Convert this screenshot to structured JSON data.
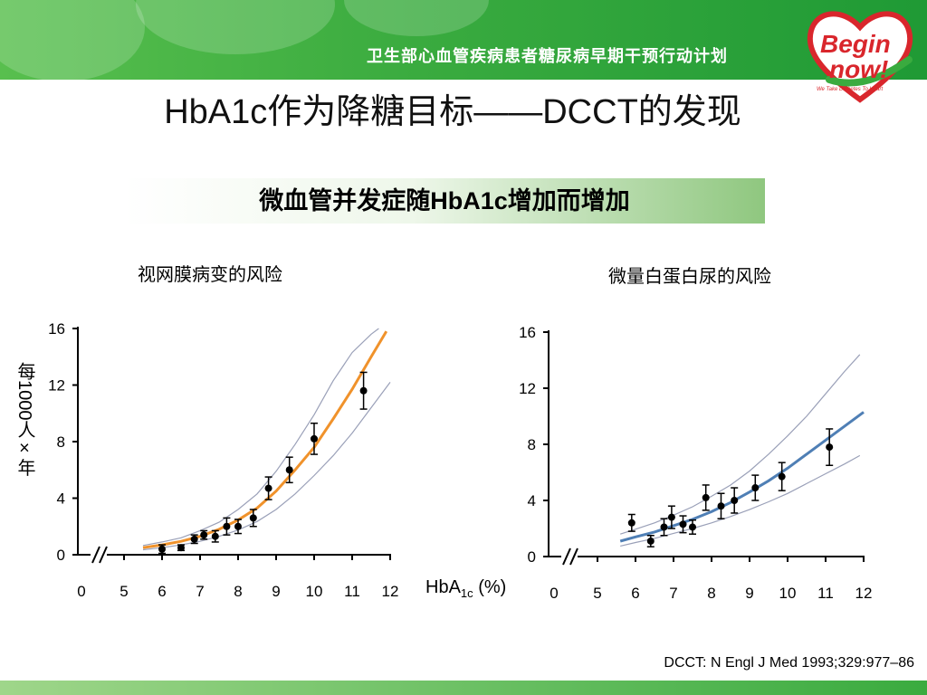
{
  "header": {
    "program_text": "卫生部心血管疾病患者糖尿病早期干预行动计划",
    "logo_text_1": "Begin",
    "logo_text_2": "now!",
    "logo_tagline": "We Take Diabetes To Heart"
  },
  "slide": {
    "title": "HbA1c作为降糖目标——DCCT的发现",
    "subtitle": "微血管并发症随HbA1c增加而增加",
    "ylabel": "每1000人×年",
    "xlabel_main": "HbA",
    "xlabel_sub": "1c",
    "xlabel_unit": " (%)",
    "citation": "DCCT: N Engl J Med 1993;329:977–86"
  },
  "colors": {
    "banner": "#3aab3f",
    "retinopathy_curve": "#f0922b",
    "albuminuria_curve": "#4f7fb5",
    "ci_lines": "#9aa0b8"
  },
  "chart_data": [
    {
      "type": "scatter",
      "title": "视网膜病变的风险",
      "xlabel": "HbA1c (%)",
      "ylabel": "每1000人×年",
      "x_ticks": [
        0,
        5,
        6,
        7,
        8,
        9,
        10,
        11,
        12
      ],
      "y_ticks": [
        0,
        4,
        8,
        12,
        16
      ],
      "ylim": [
        0,
        16
      ],
      "axis_break": true,
      "points": [
        {
          "x": 6.0,
          "y": 0.4,
          "err": 0.3
        },
        {
          "x": 6.5,
          "y": 0.5,
          "err": 0.2
        },
        {
          "x": 6.85,
          "y": 1.1,
          "err": 0.3
        },
        {
          "x": 7.1,
          "y": 1.4,
          "err": 0.3
        },
        {
          "x": 7.4,
          "y": 1.3,
          "err": 0.4
        },
        {
          "x": 7.7,
          "y": 2.0,
          "err": 0.6
        },
        {
          "x": 8.0,
          "y": 2.0,
          "err": 0.5
        },
        {
          "x": 8.4,
          "y": 2.6,
          "err": 0.6
        },
        {
          "x": 8.8,
          "y": 4.7,
          "err": 0.8
        },
        {
          "x": 9.35,
          "y": 6.0,
          "err": 0.9
        },
        {
          "x": 10.0,
          "y": 8.2,
          "err": 1.1
        },
        {
          "x": 11.3,
          "y": 11.6,
          "err": 1.3
        }
      ],
      "fit_curve": {
        "x": [
          5.5,
          6,
          6.5,
          7,
          7.5,
          8,
          8.5,
          9,
          9.5,
          10,
          10.5,
          11,
          11.5,
          11.9
        ],
        "y": [
          0.5,
          0.7,
          0.95,
          1.3,
          1.8,
          2.45,
          3.3,
          4.5,
          6.0,
          7.6,
          9.6,
          11.7,
          14.0,
          15.8
        ]
      },
      "ci_upper": {
        "x": [
          5.5,
          6,
          6.5,
          7,
          7.5,
          8,
          8.5,
          9,
          9.5,
          10,
          10.5,
          11,
          11.5,
          11.7
        ],
        "y": [
          0.65,
          0.9,
          1.2,
          1.7,
          2.3,
          3.2,
          4.3,
          5.9,
          7.8,
          9.9,
          12.3,
          14.3,
          15.6,
          16.0
        ]
      },
      "ci_lower": {
        "x": [
          5.5,
          6,
          6.5,
          7,
          7.5,
          8,
          8.5,
          9,
          9.5,
          10,
          10.5,
          11,
          11.5,
          12
        ],
        "y": [
          0.35,
          0.5,
          0.7,
          0.95,
          1.3,
          1.75,
          2.35,
          3.2,
          4.3,
          5.6,
          7.0,
          8.6,
          10.4,
          12.2
        ]
      }
    },
    {
      "type": "scatter",
      "title": "微量白蛋白尿的风险",
      "xlabel": "HbA1c (%)",
      "ylabel": "每1000人×年",
      "x_ticks": [
        0,
        5,
        6,
        7,
        8,
        9,
        10,
        11,
        12
      ],
      "y_ticks": [
        0,
        4,
        8,
        12,
        16
      ],
      "ylim": [
        0,
        16
      ],
      "axis_break": true,
      "points": [
        {
          "x": 5.9,
          "y": 2.4,
          "err": 0.6
        },
        {
          "x": 6.4,
          "y": 1.1,
          "err": 0.4
        },
        {
          "x": 6.75,
          "y": 2.1,
          "err": 0.6
        },
        {
          "x": 6.95,
          "y": 2.8,
          "err": 0.8
        },
        {
          "x": 7.25,
          "y": 2.3,
          "err": 0.6
        },
        {
          "x": 7.5,
          "y": 2.1,
          "err": 0.5
        },
        {
          "x": 7.85,
          "y": 4.2,
          "err": 0.9
        },
        {
          "x": 8.25,
          "y": 3.6,
          "err": 0.9
        },
        {
          "x": 8.6,
          "y": 4.0,
          "err": 0.9
        },
        {
          "x": 9.15,
          "y": 4.9,
          "err": 0.9
        },
        {
          "x": 9.85,
          "y": 5.7,
          "err": 1.0
        },
        {
          "x": 11.1,
          "y": 7.8,
          "err": 1.3
        }
      ],
      "fit_curve": {
        "x": [
          5.6,
          6,
          6.5,
          7,
          7.5,
          8,
          8.5,
          9,
          9.5,
          10,
          10.5,
          11,
          11.5,
          12
        ],
        "y": [
          1.1,
          1.4,
          1.75,
          2.2,
          2.65,
          3.2,
          3.85,
          4.6,
          5.4,
          6.3,
          7.3,
          8.3,
          9.3,
          10.3
        ]
      },
      "ci_upper": {
        "x": [
          5.6,
          6,
          6.5,
          7,
          7.5,
          8,
          8.5,
          9,
          9.5,
          10,
          10.5,
          11,
          11.5,
          11.9
        ],
        "y": [
          1.6,
          1.95,
          2.4,
          2.95,
          3.55,
          4.3,
          5.1,
          6.1,
          7.3,
          8.6,
          10.0,
          11.6,
          13.2,
          14.4
        ]
      },
      "ci_lower": {
        "x": [
          5.6,
          6,
          6.5,
          7,
          7.5,
          8,
          8.5,
          9,
          9.5,
          10,
          10.5,
          11,
          11.5,
          11.9
        ],
        "y": [
          0.75,
          1.0,
          1.3,
          1.65,
          2.0,
          2.4,
          2.85,
          3.35,
          3.9,
          4.5,
          5.2,
          5.9,
          6.6,
          7.2
        ]
      }
    }
  ]
}
